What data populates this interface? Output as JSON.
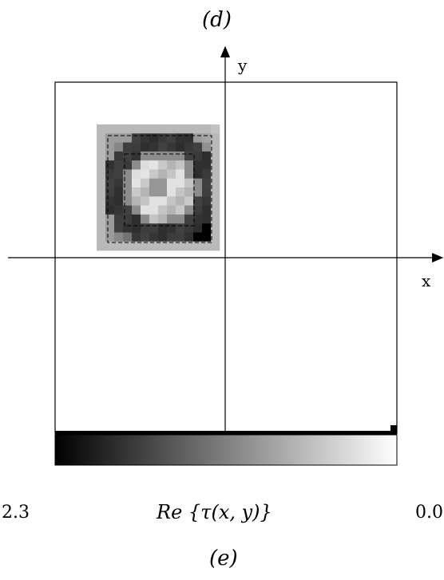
{
  "figure": {
    "top_label": "(d)",
    "bottom_label": "(e)",
    "x_axis_label": "x",
    "y_axis_label": "y"
  },
  "colorbar": {
    "left_value": "2.3",
    "right_value": "0.0",
    "quantity_label": "Re {τ(x, y)}"
  },
  "image_map": {
    "grid_rows": 14,
    "grid_cols": 14,
    "dashed_outlines": 2,
    "colormap": "grayscale, dark = high value"
  },
  "colors": {
    "background": "#ffffff",
    "ink": "#000000"
  }
}
